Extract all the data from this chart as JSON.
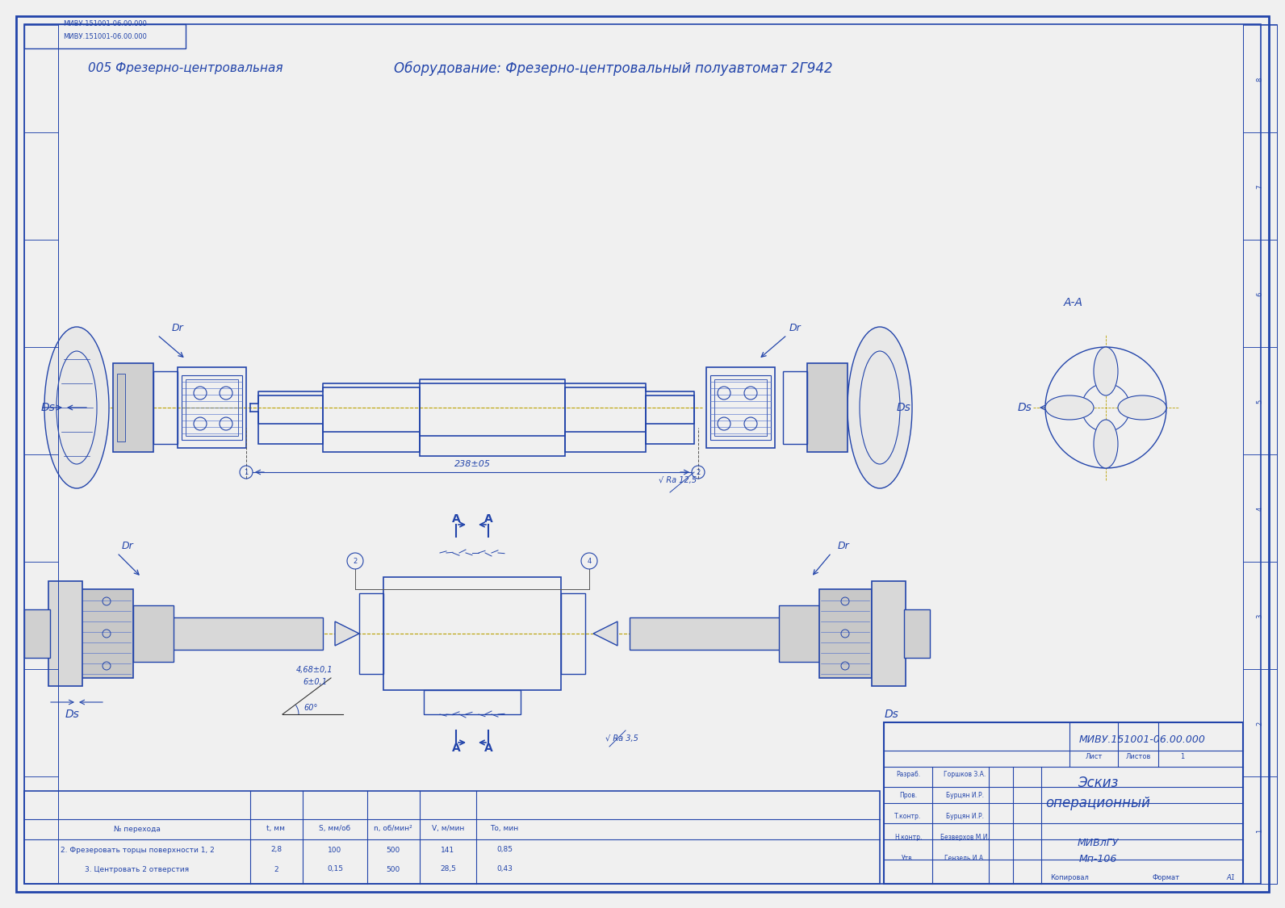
{
  "bg_color": "#f0f0f0",
  "border_color": "#2244aa",
  "line_color": "#2244aa",
  "text_color": "#2244aa",
  "title_op": "005 Фрезерно-центровальная",
  "title_equip": "Оборудование: Фрезерно-центровальный полуавтомат 2Г942",
  "doc_number": "МИВУ.151001-06.00.000",
  "doc_title1": "Эскиз",
  "doc_title2": "операционный",
  "university": "МИВлГУ",
  "group": "Мп-106",
  "sheet_label": "Лист",
  "sheets_label": "Листов",
  "sheets_count": "1",
  "format_label": "Формат",
  "format_value": "А1",
  "stamp_label": "Копировал",
  "roles": [
    [
      "Разраб.",
      "Горшков З.А."
    ],
    [
      "Пров.",
      "Бурцян И.Р."
    ],
    [
      "Т.контр.",
      "Бурцян И.Р."
    ],
    [
      "Н.контр.",
      "Безверхов М.И."
    ],
    [
      "Утв.",
      "Гензель И.А."
    ]
  ],
  "table_headers": [
    "№ перехода",
    "t, мм",
    "S, мм/об",
    "n, об/мин²",
    "V, м/мин",
    "Tо, мин"
  ],
  "table_rows": [
    [
      "2. Фрезеровать торцы поверхности 1, 2",
      "2,8",
      "100",
      "500",
      "141",
      "0,85"
    ],
    [
      "3. Центровать 2 отверстия",
      "2",
      "0,15",
      "500",
      "28,5",
      "0,43"
    ]
  ],
  "stamp_top": "МИВУ.151001-06.00.000",
  "dim_238": "238±05",
  "dim_ra": "√ Ra 12,5",
  "dim_ra2": "√ Ra 3,5",
  "dim_angle": "60°",
  "dim_468": "4,68±0,1",
  "dim_6": "6±0,1",
  "label_ds": "Ds",
  "label_dr": "Dr",
  "label_aa": "A-A",
  "label_a": "A"
}
